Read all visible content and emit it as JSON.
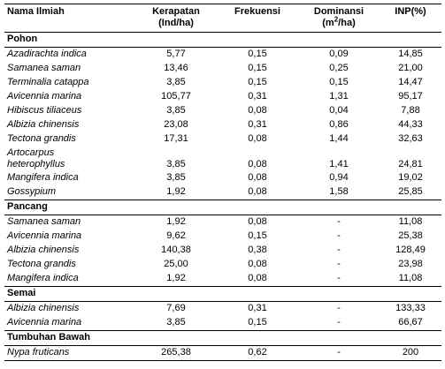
{
  "headers": {
    "name": "Nama Ilmiah",
    "kerapatan_line1": "Kerapatan",
    "kerapatan_line2": "(Ind/ha)",
    "frekuensi": "Frekuensi",
    "dominansi_line1": "Dominansi",
    "dominansi_line2_pre": "(m",
    "dominansi_line2_sup": "2",
    "dominansi_line2_post": "/ha)",
    "inp": "INP(%)"
  },
  "sections": [
    {
      "title": "Pohon",
      "rows": [
        {
          "name": "Azadirachta indica",
          "kerapatan": "5,77",
          "frekuensi": "0,15",
          "dominansi": "0,09",
          "inp": "14,85"
        },
        {
          "name": "Samanea saman",
          "kerapatan": "13,46",
          "frekuensi": "0,15",
          "dominansi": "0,25",
          "inp": "21,00"
        },
        {
          "name": "Terminalia catappa",
          "kerapatan": "3,85",
          "frekuensi": "0,15",
          "dominansi": "0,15",
          "inp": "14,47"
        },
        {
          "name": "Avicennia marina",
          "kerapatan": "105,77",
          "frekuensi": "0,31",
          "dominansi": "1,31",
          "inp": "95,17"
        },
        {
          "name": "Hibiscus tiliaceus",
          "kerapatan": "3,85",
          "frekuensi": "0,08",
          "dominansi": "0,04",
          "inp": "7,88"
        },
        {
          "name": "Albizia chinensis",
          "kerapatan": "23,08",
          "frekuensi": "0,31",
          "dominansi": "0,86",
          "inp": "44,33"
        },
        {
          "name": "Tectona grandis",
          "kerapatan": "17,31",
          "frekuensi": "0,08",
          "dominansi": "1,44",
          "inp": "32,63"
        },
        {
          "name_line1": "Artocarpus",
          "name_line2": "heterophyllus",
          "kerapatan": "3,85",
          "frekuensi": "0,08",
          "dominansi": "1,41",
          "inp": "24,81"
        },
        {
          "name": "Mangifera indica",
          "kerapatan": "3,85",
          "frekuensi": "0,08",
          "dominansi": "0,94",
          "inp": "19,02"
        },
        {
          "name": "Gossypium",
          "kerapatan": "1,92",
          "frekuensi": "0,08",
          "dominansi": "1,58",
          "inp": "25,85"
        }
      ]
    },
    {
      "title": "Pancang",
      "rows": [
        {
          "name": "Samanea saman",
          "kerapatan": "1,92",
          "frekuensi": "0,08",
          "dominansi": "-",
          "inp": "11,08"
        },
        {
          "name": "Avicennia marina",
          "kerapatan": "9,62",
          "frekuensi": "0,15",
          "dominansi": "-",
          "inp": "25,38"
        },
        {
          "name": "Albizia chinensis",
          "kerapatan": "140,38",
          "frekuensi": "0,38",
          "dominansi": "-",
          "inp": "128,49"
        },
        {
          "name": "Tectona grandis",
          "kerapatan": "25,00",
          "frekuensi": "0,08",
          "dominansi": "-",
          "inp": "23,98"
        },
        {
          "name": "Mangifera indica",
          "kerapatan": "1,92",
          "frekuensi": "0,08",
          "dominansi": "-",
          "inp": "11,08"
        }
      ]
    },
    {
      "title": "Semai",
      "rows": [
        {
          "name": "Albizia chinensis",
          "kerapatan": "7,69",
          "frekuensi": "0,31",
          "dominansi": "-",
          "inp": "133,33"
        },
        {
          "name": "Avicennia marina",
          "kerapatan": "3,85",
          "frekuensi": "0,15",
          "dominansi": "-",
          "inp": "66,67"
        }
      ]
    },
    {
      "title": "Tumbuhan Bawah",
      "rows": [
        {
          "name": "Nypa fruticans",
          "kerapatan": "265,38",
          "frekuensi": "0,62",
          "dominansi": "-",
          "inp": "200"
        }
      ]
    }
  ]
}
